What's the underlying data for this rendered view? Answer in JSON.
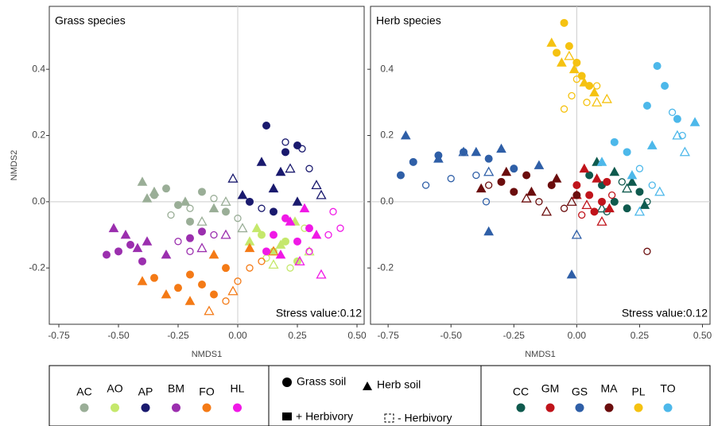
{
  "chart_data": [
    {
      "type": "scatter",
      "title": "Grass species",
      "annotation": "Stress value:0.12",
      "xlabel": "NMDS1",
      "ylabel": "NMDS2",
      "xlim": [
        -0.79,
        0.53
      ],
      "ylim": [
        -0.37,
        0.59
      ],
      "xticks": [
        -0.75,
        {
          "value": -0.5,
          "label": "-0.50"
        },
        -0.25,
        {
          "value": 0,
          "label": "0.00"
        },
        0.25,
        {
          "value": 0.5,
          "label": "0.50"
        }
      ],
      "yticks": [
        -0.2,
        {
          "value": 0,
          "label": "0.0"
        },
        0.2,
        0.4
      ],
      "series": [
        {
          "name": "AC",
          "color": "#9aae97",
          "groups": [
            {
              "marker": "circle",
              "filled": true,
              "x": [
                -0.35,
                -0.25,
                -0.15,
                -0.05,
                -0.2,
                -0.3
              ],
              "y": [
                0.02,
                -0.01,
                0.03,
                -0.03,
                -0.06,
                0.04
              ]
            },
            {
              "marker": "circle",
              "filled": false,
              "x": [
                -0.2,
                -0.1,
                0.0,
                -0.28
              ],
              "y": [
                -0.02,
                0.01,
                -0.05,
                -0.04
              ]
            },
            {
              "marker": "triangle",
              "filled": true,
              "x": [
                -0.4,
                -0.35,
                -0.22,
                -0.1,
                -0.38
              ],
              "y": [
                0.06,
                0.03,
                0.0,
                -0.02,
                0.01
              ]
            },
            {
              "marker": "triangle",
              "filled": false,
              "x": [
                -0.15,
                -0.05,
                0.02
              ],
              "y": [
                -0.06,
                0.0,
                -0.08
              ]
            }
          ]
        },
        {
          "name": "AO",
          "color": "#c5e86c",
          "groups": [
            {
              "marker": "circle",
              "filled": true,
              "x": [
                0.1,
                0.15,
                0.2,
                0.25
              ],
              "y": [
                -0.1,
                -0.15,
                -0.12,
                -0.18
              ]
            },
            {
              "marker": "circle",
              "filled": false,
              "x": [
                0.12,
                0.22,
                0.28
              ],
              "y": [
                -0.17,
                -0.2,
                -0.08
              ]
            },
            {
              "marker": "triangle",
              "filled": true,
              "x": [
                0.08,
                0.18,
                0.24,
                0.05
              ],
              "y": [
                -0.08,
                -0.13,
                -0.06,
                -0.12
              ]
            },
            {
              "marker": "triangle",
              "filled": false,
              "x": [
                0.15,
                0.3
              ],
              "y": [
                -0.19,
                -0.15
              ]
            }
          ]
        },
        {
          "name": "AP",
          "color": "#1a1a6e",
          "groups": [
            {
              "marker": "circle",
              "filled": true,
              "x": [
                0.12,
                0.2,
                0.25,
                0.05,
                0.15
              ],
              "y": [
                0.23,
                0.15,
                0.17,
                0.0,
                -0.03
              ]
            },
            {
              "marker": "circle",
              "filled": false,
              "x": [
                0.2,
                0.3,
                0.27,
                0.1
              ],
              "y": [
                0.18,
                0.1,
                0.16,
                -0.02
              ]
            },
            {
              "marker": "triangle",
              "filled": true,
              "x": [
                0.1,
                0.18,
                0.02,
                0.25,
                0.15
              ],
              "y": [
                0.12,
                0.09,
                0.02,
                0.0,
                0.04
              ]
            },
            {
              "marker": "triangle",
              "filled": false,
              "x": [
                0.33,
                0.22,
                0.35,
                -0.02
              ],
              "y": [
                0.05,
                0.1,
                0.02,
                0.07
              ]
            }
          ]
        },
        {
          "name": "BM",
          "color": "#9b2fae",
          "groups": [
            {
              "marker": "circle",
              "filled": true,
              "x": [
                -0.5,
                -0.45,
                -0.55,
                -0.4,
                -0.2,
                -0.15
              ],
              "y": [
                -0.15,
                -0.13,
                -0.16,
                -0.18,
                -0.11,
                -0.09
              ]
            },
            {
              "marker": "circle",
              "filled": false,
              "x": [
                -0.25,
                -0.1,
                -0.2
              ],
              "y": [
                -0.12,
                -0.1,
                -0.15
              ]
            },
            {
              "marker": "triangle",
              "filled": true,
              "x": [
                -0.52,
                -0.47,
                -0.42,
                -0.38,
                -0.3
              ],
              "y": [
                -0.08,
                -0.1,
                -0.14,
                -0.12,
                -0.16
              ]
            },
            {
              "marker": "triangle",
              "filled": false,
              "x": [
                -0.15,
                -0.05
              ],
              "y": [
                -0.14,
                -0.1
              ]
            }
          ]
        },
        {
          "name": "FO",
          "color": "#f47a16",
          "groups": [
            {
              "marker": "circle",
              "filled": true,
              "x": [
                -0.2,
                -0.15,
                -0.1,
                -0.05,
                -0.25,
                -0.35
              ],
              "y": [
                -0.22,
                -0.25,
                -0.28,
                -0.2,
                -0.26,
                -0.23
              ]
            },
            {
              "marker": "circle",
              "filled": false,
              "x": [
                0.0,
                0.05,
                0.1,
                -0.05
              ],
              "y": [
                -0.24,
                -0.2,
                -0.18,
                -0.3
              ]
            },
            {
              "marker": "triangle",
              "filled": true,
              "x": [
                -0.4,
                -0.2,
                -0.1,
                -0.3,
                0.05
              ],
              "y": [
                -0.24,
                -0.3,
                -0.16,
                -0.28,
                -0.14
              ]
            },
            {
              "marker": "triangle",
              "filled": false,
              "x": [
                -0.12,
                0.15,
                -0.02
              ],
              "y": [
                -0.33,
                -0.15,
                -0.27
              ]
            }
          ]
        },
        {
          "name": "HL",
          "color": "#f019e6",
          "groups": [
            {
              "marker": "circle",
              "filled": true,
              "x": [
                0.15,
                0.2,
                0.25,
                0.3,
                0.12
              ],
              "y": [
                -0.1,
                -0.05,
                -0.12,
                -0.08,
                -0.15
              ]
            },
            {
              "marker": "circle",
              "filled": false,
              "x": [
                0.38,
                0.43,
                0.4,
                0.3
              ],
              "y": [
                -0.1,
                -0.08,
                -0.03,
                -0.15
              ]
            },
            {
              "marker": "triangle",
              "filled": true,
              "x": [
                0.22,
                0.28,
                0.33,
                0.18
              ],
              "y": [
                -0.06,
                -0.02,
                -0.1,
                -0.16
              ]
            },
            {
              "marker": "triangle",
              "filled": false,
              "x": [
                0.35,
                0.26
              ],
              "y": [
                -0.22,
                -0.18
              ]
            }
          ]
        }
      ]
    },
    {
      "type": "scatter",
      "title": "Herb species",
      "annotation": "Stress value:0.12",
      "xlabel": "NMDS1",
      "xlim": [
        -0.82,
        0.53
      ],
      "ylim": [
        -0.37,
        0.59
      ],
      "xticks": [
        -0.75,
        {
          "value": -0.5,
          "label": "-0.50"
        },
        -0.25,
        {
          "value": 0,
          "label": "0.00"
        },
        0.25,
        {
          "value": 0.5,
          "label": "0.50"
        }
      ],
      "yticks": [
        -0.2,
        {
          "value": 0,
          "label": "0.0"
        },
        0.2,
        0.4
      ],
      "series": [
        {
          "name": "CC",
          "color": "#0f5a4e",
          "groups": [
            {
              "marker": "circle",
              "filled": true,
              "x": [
                0.05,
                0.1,
                0.15,
                0.2,
                0.25
              ],
              "y": [
                0.08,
                0.05,
                0.0,
                -0.02,
                0.03
              ]
            },
            {
              "marker": "circle",
              "filled": false,
              "x": [
                0.18,
                0.12,
                0.28
              ],
              "y": [
                0.06,
                -0.03,
                0.0
              ]
            },
            {
              "marker": "triangle",
              "filled": true,
              "x": [
                0.08,
                0.15,
                0.22,
                0.27
              ],
              "y": [
                0.12,
                0.09,
                0.06,
                -0.01
              ]
            },
            {
              "marker": "triangle",
              "filled": false,
              "x": [
                0.1,
                0.2
              ],
              "y": [
                -0.02,
                0.04
              ]
            }
          ]
        },
        {
          "name": "GM",
          "color": "#c0141b",
          "groups": [
            {
              "marker": "circle",
              "filled": true,
              "x": [
                0.0,
                0.05,
                0.1,
                0.07,
                0.12
              ],
              "y": [
                0.05,
                0.02,
                0.0,
                -0.03,
                0.06
              ]
            },
            {
              "marker": "circle",
              "filled": false,
              "x": [
                0.02,
                0.14
              ],
              "y": [
                -0.04,
                0.02
              ]
            },
            {
              "marker": "triangle",
              "filled": true,
              "x": [
                0.03,
                0.08,
                0.13,
                0.0
              ],
              "y": [
                0.1,
                0.07,
                -0.02,
                0.02
              ]
            },
            {
              "marker": "triangle",
              "filled": false,
              "x": [
                0.1,
                0.04
              ],
              "y": [
                -0.06,
                -0.01
              ]
            }
          ]
        },
        {
          "name": "GS",
          "color": "#2f5fa7",
          "groups": [
            {
              "marker": "circle",
              "filled": true,
              "x": [
                -0.7,
                -0.65,
                -0.55,
                -0.45,
                -0.35,
                -0.25
              ],
              "y": [
                0.08,
                0.12,
                0.14,
                0.15,
                0.13,
                0.1
              ]
            },
            {
              "marker": "circle",
              "filled": false,
              "x": [
                -0.6,
                -0.4,
                -0.5,
                -0.36
              ],
              "y": [
                0.05,
                0.08,
                0.07,
                0.0
              ]
            },
            {
              "marker": "triangle",
              "filled": true,
              "x": [
                -0.68,
                -0.55,
                -0.3,
                -0.02,
                -0.4,
                -0.15,
                -0.35
              ],
              "y": [
                0.2,
                0.13,
                0.16,
                -0.22,
                0.15,
                0.11,
                -0.09
              ]
            },
            {
              "marker": "triangle",
              "filled": false,
              "x": [
                -0.45,
                -0.35,
                0.0
              ],
              "y": [
                0.15,
                0.09,
                -0.1
              ]
            }
          ]
        },
        {
          "name": "MA",
          "color": "#6b0d0d",
          "groups": [
            {
              "marker": "circle",
              "filled": true,
              "x": [
                -0.3,
                -0.2,
                -0.1,
                0.0,
                -0.25
              ],
              "y": [
                0.06,
                0.08,
                0.05,
                0.02,
                0.03
              ]
            },
            {
              "marker": "circle",
              "filled": false,
              "x": [
                -0.35,
                -0.15,
                -0.05,
                0.28
              ],
              "y": [
                0.05,
                0.0,
                -0.02,
                -0.15
              ]
            },
            {
              "marker": "triangle",
              "filled": true,
              "x": [
                -0.38,
                -0.28,
                -0.18,
                -0.08
              ],
              "y": [
                0.04,
                0.09,
                0.03,
                0.07
              ]
            },
            {
              "marker": "triangle",
              "filled": false,
              "x": [
                -0.12,
                -0.02,
                -0.2
              ],
              "y": [
                -0.03,
                0.0,
                0.01
              ]
            }
          ]
        },
        {
          "name": "PL",
          "color": "#f5c211",
          "groups": [
            {
              "marker": "circle",
              "filled": true,
              "x": [
                -0.05,
                -0.03,
                0.0,
                0.02,
                -0.08,
                0.05
              ],
              "y": [
                0.54,
                0.47,
                0.42,
                0.38,
                0.45,
                0.35
              ]
            },
            {
              "marker": "circle",
              "filled": false,
              "x": [
                -0.02,
                0.04,
                0.08,
                -0.05,
                0.0
              ],
              "y": [
                0.32,
                0.3,
                0.35,
                0.28,
                0.37
              ]
            },
            {
              "marker": "triangle",
              "filled": true,
              "x": [
                -0.1,
                -0.06,
                -0.01,
                0.03,
                0.07
              ],
              "y": [
                0.48,
                0.42,
                0.4,
                0.36,
                0.33
              ]
            },
            {
              "marker": "triangle",
              "filled": false,
              "x": [
                0.08,
                -0.03,
                0.12
              ],
              "y": [
                0.3,
                0.44,
                0.31
              ]
            }
          ]
        },
        {
          "name": "TO",
          "color": "#4db8ea",
          "groups": [
            {
              "marker": "circle",
              "filled": true,
              "x": [
                0.32,
                0.35,
                0.28,
                0.2,
                0.15,
                0.4
              ],
              "y": [
                0.41,
                0.35,
                0.29,
                0.15,
                0.18,
                0.25
              ]
            },
            {
              "marker": "circle",
              "filled": false,
              "x": [
                0.38,
                0.42,
                0.25,
                0.3
              ],
              "y": [
                0.27,
                0.2,
                0.1,
                0.05
              ]
            },
            {
              "marker": "triangle",
              "filled": true,
              "x": [
                0.47,
                0.22,
                0.1,
                0.3
              ],
              "y": [
                0.24,
                0.08,
                0.12,
                0.17
              ]
            },
            {
              "marker": "triangle",
              "filled": false,
              "x": [
                0.4,
                0.43,
                0.33,
                0.25
              ],
              "y": [
                0.2,
                0.15,
                0.03,
                -0.03
              ]
            }
          ]
        }
      ]
    }
  ],
  "legend": {
    "grass_soil": "Grass soil",
    "herb_soil": "Herb soil",
    "plus_herbivory": "+ Herbivory",
    "minus_herbivory": "- Herbivory"
  }
}
